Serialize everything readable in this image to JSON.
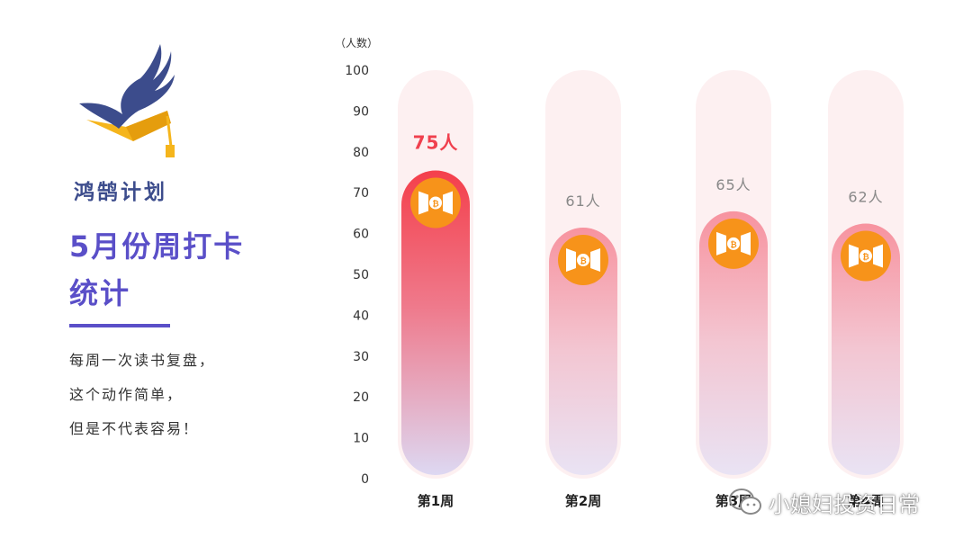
{
  "logo": {
    "text": "鸿鹄计划"
  },
  "headline": {
    "line1": "5月份周打卡",
    "line2": "统计"
  },
  "body": {
    "line1": "每周一次读书复盘，",
    "line2": "这个动作简单，",
    "line3": "但是不代表容易！"
  },
  "colors": {
    "accent": "#5a4fc8",
    "highlight": "#f0404e",
    "coin": "#f7931a",
    "label_gray": "#888888"
  },
  "chart_data": {
    "type": "bar",
    "ylabel": "（人数）",
    "ylim": [
      0,
      100
    ],
    "yticks": [
      0,
      10,
      20,
      30,
      40,
      50,
      60,
      70,
      80,
      90,
      100
    ],
    "categories": [
      "第1周",
      "第2周",
      "第3周",
      "第4周"
    ],
    "values": [
      75,
      61,
      65,
      62
    ],
    "labels": [
      "75人",
      "61人",
      "65人",
      "62人"
    ],
    "highlight_index": 0,
    "marker_icon": "bitcoin-icon"
  },
  "watermark": {
    "text": "小媳妇投资日常",
    "icon": "wechat-icon"
  }
}
